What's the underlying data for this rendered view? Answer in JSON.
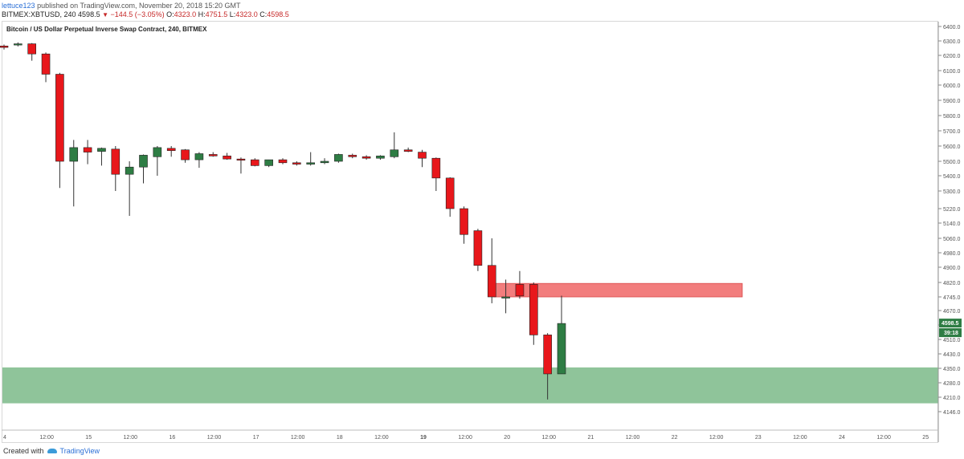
{
  "header": {
    "user": "lettuce123",
    "published_text": "published on TradingView.com, November 20, 2018 15:20 GMT",
    "symbol": "BITMEX:XBTUSD, 240",
    "last": "4598.5",
    "change": "−144.5 (−3.05%)",
    "open_label": "O:",
    "open": "4323.0",
    "high_label": "H:",
    "high": "4751.5",
    "low_label": "L:",
    "low": "4323.0",
    "close_label": "C:",
    "close": "4598.5"
  },
  "chart_title": "Bitcoin / US Dollar Perpetual Inverse Swap Contract, 240, BITMEX",
  "footer": {
    "created_with": "Created with",
    "brand": "TradingView"
  },
  "colors": {
    "up": "#2e7d44",
    "down": "#e8171b",
    "resistance_zone": "#f27d7d",
    "support_zone": "#8fc49a",
    "price_tag": "#2e7d44"
  },
  "chart_data": {
    "type": "candlestick",
    "price_axis": {
      "ticks": [
        "6400.0",
        "6300.0",
        "6200.0",
        "6100.0",
        "6000.0",
        "5900.0",
        "5800.0",
        "5700.0",
        "5600.0",
        "5500.0",
        "5400.0",
        "5300.0",
        "5220.0",
        "5140.0",
        "5060.0",
        "4980.0",
        "4900.0",
        "4820.0",
        "4745.0",
        "4670.0",
        "4590.0",
        "4510.0",
        "4430.0",
        "4350.0",
        "4280.0",
        "4210.0",
        "4146.0"
      ]
    },
    "time_axis": {
      "labels": [
        "4",
        "12:00",
        "15",
        "12:00",
        "16",
        "12:00",
        "17",
        "12:00",
        "18",
        "12:00",
        "19",
        "12:00",
        "20",
        "12:00",
        "21",
        "12:00",
        "22",
        "12:00",
        "23",
        "12:00",
        "24",
        "12:00",
        "25"
      ],
      "bold_labels": [
        "19"
      ]
    },
    "last_price_tag": "4598.5",
    "countdown_tag": "39:18",
    "candles": [
      {
        "o": 6265,
        "h": 6275,
        "l": 6240,
        "c": 6255
      },
      {
        "o": 6272,
        "h": 6290,
        "l": 6262,
        "c": 6280
      },
      {
        "o": 6280,
        "h": 6285,
        "l": 6165,
        "c": 6210
      },
      {
        "o": 6210,
        "h": 6220,
        "l": 6020,
        "c": 6075
      },
      {
        "o": 6075,
        "h": 6085,
        "l": 5320,
        "c": 5500
      },
      {
        "o": 5500,
        "h": 5640,
        "l": 5230,
        "c": 5590
      },
      {
        "o": 5590,
        "h": 5640,
        "l": 5480,
        "c": 5560
      },
      {
        "o": 5565,
        "h": 5590,
        "l": 5470,
        "c": 5585
      },
      {
        "o": 5580,
        "h": 5600,
        "l": 5300,
        "c": 5410
      },
      {
        "o": 5410,
        "h": 5500,
        "l": 5180,
        "c": 5460
      },
      {
        "o": 5460,
        "h": 5545,
        "l": 5350,
        "c": 5540
      },
      {
        "o": 5530,
        "h": 5600,
        "l": 5400,
        "c": 5590
      },
      {
        "o": 5585,
        "h": 5600,
        "l": 5530,
        "c": 5570
      },
      {
        "o": 5575,
        "h": 5580,
        "l": 5490,
        "c": 5510
      },
      {
        "o": 5510,
        "h": 5560,
        "l": 5455,
        "c": 5550
      },
      {
        "o": 5545,
        "h": 5560,
        "l": 5530,
        "c": 5535
      },
      {
        "o": 5535,
        "h": 5555,
        "l": 5510,
        "c": 5515
      },
      {
        "o": 5515,
        "h": 5525,
        "l": 5415,
        "c": 5510
      },
      {
        "o": 5510,
        "h": 5520,
        "l": 5465,
        "c": 5470
      },
      {
        "o": 5470,
        "h": 5510,
        "l": 5460,
        "c": 5510
      },
      {
        "o": 5510,
        "h": 5520,
        "l": 5480,
        "c": 5490
      },
      {
        "o": 5490,
        "h": 5500,
        "l": 5470,
        "c": 5480
      },
      {
        "o": 5480,
        "h": 5560,
        "l": 5470,
        "c": 5490
      },
      {
        "o": 5490,
        "h": 5520,
        "l": 5480,
        "c": 5500
      },
      {
        "o": 5500,
        "h": 5550,
        "l": 5490,
        "c": 5545
      },
      {
        "o": 5540,
        "h": 5550,
        "l": 5520,
        "c": 5530
      },
      {
        "o": 5530,
        "h": 5540,
        "l": 5510,
        "c": 5520
      },
      {
        "o": 5520,
        "h": 5540,
        "l": 5510,
        "c": 5535
      },
      {
        "o": 5530,
        "h": 5690,
        "l": 5520,
        "c": 5575
      },
      {
        "o": 5575,
        "h": 5590,
        "l": 5560,
        "c": 5565
      },
      {
        "o": 5560,
        "h": 5575,
        "l": 5460,
        "c": 5520
      },
      {
        "o": 5520,
        "h": 5525,
        "l": 5300,
        "c": 5385
      },
      {
        "o": 5385,
        "h": 5390,
        "l": 5175,
        "c": 5220
      },
      {
        "o": 5220,
        "h": 5230,
        "l": 5030,
        "c": 5080
      },
      {
        "o": 5100,
        "h": 5110,
        "l": 4880,
        "c": 4910
      },
      {
        "o": 4910,
        "h": 5060,
        "l": 4710,
        "c": 4745
      },
      {
        "o": 4745,
        "h": 4835,
        "l": 4655,
        "c": 4745
      },
      {
        "o": 4810,
        "h": 4880,
        "l": 4735,
        "c": 4750
      },
      {
        "o": 4810,
        "h": 4820,
        "l": 4480,
        "c": 4535
      },
      {
        "o": 4535,
        "h": 4545,
        "l": 4200,
        "c": 4323
      },
      {
        "o": 4323,
        "h": 4751.5,
        "l": 4323,
        "c": 4598.5
      }
    ],
    "resistance_zone": {
      "from": 4745,
      "to": 4815
    },
    "support_zone": {
      "from": 4183,
      "to": 4355
    }
  }
}
